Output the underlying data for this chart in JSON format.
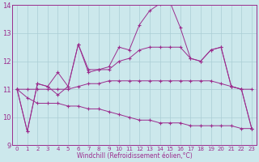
{
  "xlabel": "Windchill (Refroidissement éolien,°C)",
  "background_color": "#cce8ec",
  "grid_color": "#aacdd4",
  "line_color": "#9b2d8e",
  "xlim": [
    -0.5,
    23.5
  ],
  "ylim": [
    9,
    14
  ],
  "yticks": [
    9,
    10,
    11,
    12,
    13,
    14
  ],
  "xticks": [
    0,
    1,
    2,
    3,
    4,
    5,
    6,
    7,
    8,
    9,
    10,
    11,
    12,
    13,
    14,
    15,
    16,
    17,
    18,
    19,
    20,
    21,
    22,
    23
  ],
  "lines": [
    {
      "x": [
        0,
        1,
        2,
        3,
        4,
        5,
        6,
        7,
        8,
        9,
        10,
        11,
        12,
        13,
        14,
        15,
        16,
        17,
        18,
        19,
        20,
        21,
        22,
        23
      ],
      "y": [
        11.0,
        9.5,
        11.2,
        11.1,
        11.6,
        11.1,
        12.6,
        11.7,
        11.7,
        11.8,
        12.5,
        12.4,
        13.3,
        13.8,
        14.05,
        14.1,
        13.2,
        12.1,
        12.0,
        12.4,
        12.5,
        11.1,
        11.0,
        9.6
      ]
    },
    {
      "x": [
        0,
        1,
        2,
        3,
        4,
        5,
        6,
        7,
        8,
        9,
        10,
        11,
        12,
        13,
        14,
        15,
        16,
        17,
        18,
        19,
        20,
        21,
        22,
        23
      ],
      "y": [
        11.0,
        11.0,
        11.0,
        11.0,
        11.0,
        11.0,
        11.1,
        11.2,
        11.2,
        11.3,
        11.3,
        11.3,
        11.3,
        11.3,
        11.3,
        11.3,
        11.3,
        11.3,
        11.3,
        11.3,
        11.2,
        11.1,
        11.0,
        11.0
      ]
    },
    {
      "x": [
        0,
        1,
        2,
        3,
        4,
        5,
        6,
        7,
        8,
        9,
        10,
        11,
        12,
        13,
        14,
        15,
        16,
        17,
        18,
        19,
        20,
        21,
        22,
        23
      ],
      "y": [
        11.0,
        9.5,
        11.2,
        11.1,
        10.8,
        11.1,
        12.6,
        11.6,
        11.7,
        11.7,
        12.0,
        12.1,
        12.4,
        12.5,
        12.5,
        12.5,
        12.5,
        12.1,
        12.0,
        12.4,
        12.5,
        11.1,
        11.0,
        9.6
      ]
    },
    {
      "x": [
        0,
        1,
        2,
        3,
        4,
        5,
        6,
        7,
        8,
        9,
        10,
        11,
        12,
        13,
        14,
        15,
        16,
        17,
        18,
        19,
        20,
        21,
        22,
        23
      ],
      "y": [
        11.0,
        10.7,
        10.5,
        10.5,
        10.5,
        10.4,
        10.4,
        10.3,
        10.3,
        10.2,
        10.1,
        10.0,
        9.9,
        9.9,
        9.8,
        9.8,
        9.8,
        9.7,
        9.7,
        9.7,
        9.7,
        9.7,
        9.6,
        9.6
      ]
    }
  ]
}
